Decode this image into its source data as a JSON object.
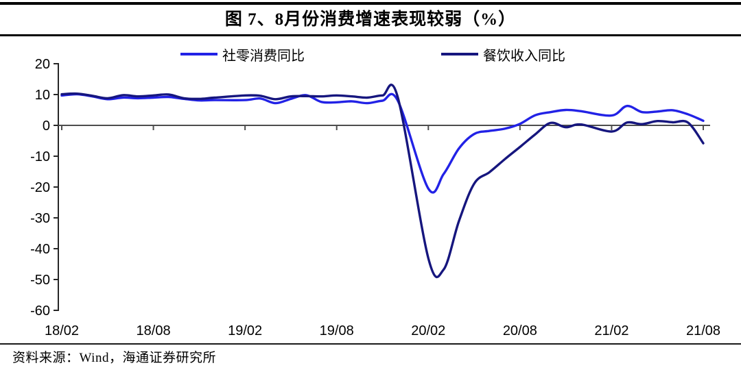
{
  "header": {
    "title": "图 7、8月份消费增速表现较弱（%）"
  },
  "legend": {
    "items": [
      {
        "label": "社零消费同比",
        "color": "#2222e6"
      },
      {
        "label": "餐饮收入同比",
        "color": "#16167e"
      }
    ]
  },
  "footer": {
    "source": "资料来源：Wind，海通证券研究所"
  },
  "chart_data": {
    "type": "line",
    "title": "图 7、8月份消费增速表现较弱（%）",
    "unit": "%",
    "ylim": [
      -60,
      20
    ],
    "yticks": [
      20,
      10,
      0,
      -10,
      -20,
      -30,
      -40,
      -50,
      -60
    ],
    "grid": false,
    "legend_position": "top",
    "x": [
      "18/02",
      "18/03",
      "18/04",
      "18/05",
      "18/06",
      "18/07",
      "18/08",
      "18/09",
      "18/10",
      "18/11",
      "18/12",
      "19/01",
      "19/02",
      "19/03",
      "19/04",
      "19/05",
      "19/06",
      "19/07",
      "19/08",
      "19/09",
      "19/10",
      "19/11",
      "19/12",
      "20/01",
      "20/02",
      "20/03",
      "20/04",
      "20/05",
      "20/06",
      "20/07",
      "20/08",
      "20/09",
      "20/10",
      "20/11",
      "20/12",
      "21/01",
      "21/02",
      "21/03",
      "21/04",
      "21/05",
      "21/06",
      "21/07",
      "21/08"
    ],
    "xtick_indices": [
      0,
      6,
      12,
      18,
      24,
      30,
      36,
      42
    ],
    "xtick_labels": [
      "18/02",
      "18/08",
      "19/02",
      "19/08",
      "20/02",
      "20/08",
      "21/02",
      "21/08"
    ],
    "series": [
      {
        "name": "社零消费同比",
        "color": "#2222e6",
        "values": [
          9.7,
          10.1,
          9.4,
          8.5,
          9.0,
          8.8,
          9.0,
          9.2,
          8.6,
          8.1,
          8.2,
          null,
          8.2,
          8.7,
          7.2,
          8.6,
          9.8,
          7.6,
          7.5,
          7.8,
          7.2,
          8.0,
          8.0,
          null,
          -20.5,
          -15.8,
          -7.5,
          -2.8,
          -1.8,
          -1.1,
          0.5,
          3.3,
          4.3,
          5.0,
          4.6,
          null,
          3.2,
          6.3,
          4.3,
          4.5,
          4.9,
          3.6,
          1.5
        ]
      },
      {
        "name": "餐饮收入同比",
        "color": "#16167e",
        "values": [
          10.1,
          10.3,
          9.6,
          8.8,
          9.8,
          9.4,
          9.7,
          10.0,
          8.8,
          8.6,
          9.0,
          null,
          9.7,
          9.6,
          8.5,
          9.4,
          9.5,
          9.4,
          9.7,
          9.4,
          9.0,
          9.7,
          9.1,
          null,
          -43.1,
          -46.8,
          -31.1,
          -18.9,
          -15.2,
          -11.0,
          -7.0,
          -2.9,
          0.8,
          -0.6,
          0.3,
          null,
          -2.0,
          0.9,
          0.4,
          1.4,
          1.0,
          0.9,
          -5.8
        ]
      }
    ]
  }
}
